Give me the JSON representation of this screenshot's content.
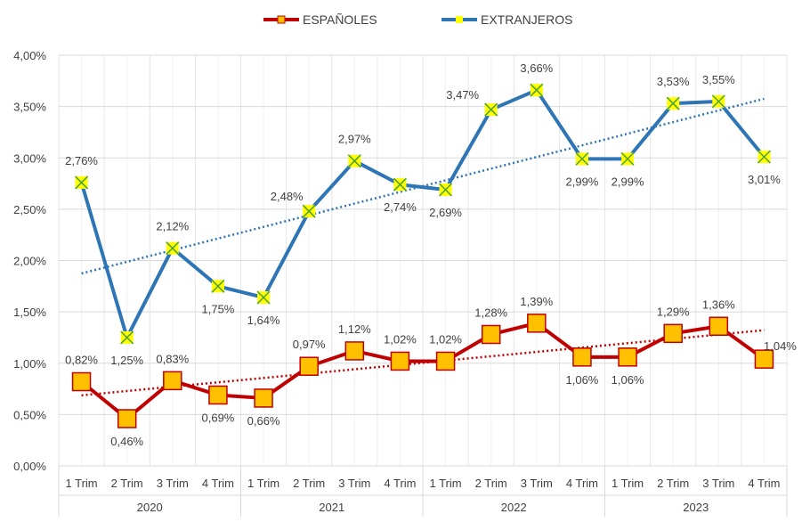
{
  "chart_data": {
    "type": "line",
    "categories": [
      "1 Trim",
      "2 Trim",
      "3 Trim",
      "4 Trim",
      "1 Trim",
      "2 Trim",
      "3 Trim",
      "4 Trim",
      "1 Trim",
      "2 Trim",
      "3 Trim",
      "4 Trim",
      "1 Trim",
      "2 Trim",
      "3 Trim",
      "4 Trim"
    ],
    "groups": [
      "2020",
      "2021",
      "2022",
      "2023"
    ],
    "ylim": [
      0,
      4
    ],
    "yticks": [
      "0,00%",
      "0,50%",
      "1,00%",
      "1,50%",
      "2,00%",
      "2,50%",
      "3,00%",
      "3,50%",
      "4,00%"
    ],
    "grid": true,
    "legend_position": "top",
    "trendline": "linear, dotted",
    "series": [
      {
        "name": "ESPAÑOLES",
        "color": "#C00000",
        "marker_color": "#FFC000",
        "marker": "square",
        "values": [
          0.82,
          0.46,
          0.83,
          0.69,
          0.66,
          0.97,
          1.12,
          1.02,
          1.02,
          1.28,
          1.39,
          1.06,
          1.06,
          1.29,
          1.36,
          1.04
        ],
        "labels": [
          "0,82%",
          "0,46%",
          "0,83%",
          "0,69%",
          "0,66%",
          "0,97%",
          "1,12%",
          "1,02%",
          "1,02%",
          "1,28%",
          "1,39%",
          "1,06%",
          "1,06%",
          "1,29%",
          "1,36%",
          "1,04%"
        ]
      },
      {
        "name": "EXTRANJEROS",
        "color": "#2E75B6",
        "marker_color": "#FFFF00",
        "marker": "x",
        "values": [
          2.76,
          1.25,
          2.12,
          1.75,
          1.64,
          2.48,
          2.97,
          2.74,
          2.69,
          3.47,
          3.66,
          2.99,
          2.99,
          3.53,
          3.55,
          3.01
        ],
        "labels": [
          "2,76%",
          "1,25%",
          "2,12%",
          "1,75%",
          "1,64%",
          "2,48%",
          "2,97%",
          "2,74%",
          "2,69%",
          "3,47%",
          "3,66%",
          "2,99%",
          "2,99%",
          "3,53%",
          "3,55%",
          "3,01%"
        ]
      }
    ]
  }
}
